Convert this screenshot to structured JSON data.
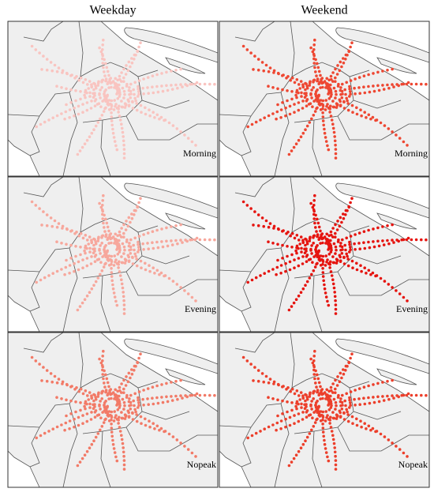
{
  "columns": [
    "Weekday",
    "Weekend"
  ],
  "panels": [
    [
      {
        "label": "Morning",
        "color": "#f9c4c0"
      },
      {
        "label": "Morning",
        "color": "#ee4732"
      }
    ],
    [
      {
        "label": "Evening",
        "color": "#f7a79c"
      },
      {
        "label": "Evening",
        "color": "#e5140f"
      }
    ],
    [
      {
        "label": "Nopeak",
        "color": "#f27a67"
      },
      {
        "label": "Nopeak",
        "color": "#ec3f2b"
      }
    ]
  ]
}
